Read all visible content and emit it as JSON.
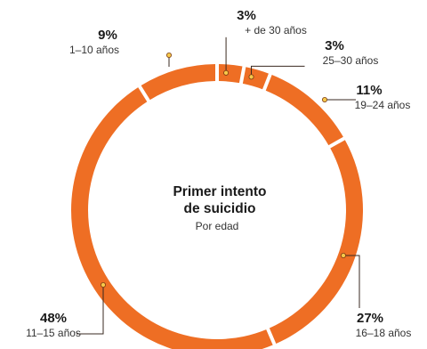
{
  "chart_data": {
    "type": "pie",
    "style": "donut",
    "title": "Primer intento de suicidio",
    "subtitle": "Por edad",
    "categories": [
      "+ de 30 años",
      "25–30 años",
      "19–24 años",
      "16–18 años",
      "11–15 años",
      "1–10 años"
    ],
    "values": [
      3,
      3,
      11,
      27,
      48,
      9
    ],
    "labels": [
      "3%",
      "3%",
      "11%",
      "27%",
      "48%",
      "9%"
    ],
    "legend": "none",
    "colors": {
      "slice": "#EE6E24",
      "marker": "#F7C94A",
      "leader": "#3a2a20",
      "text": "#1a1a1a"
    }
  }
}
